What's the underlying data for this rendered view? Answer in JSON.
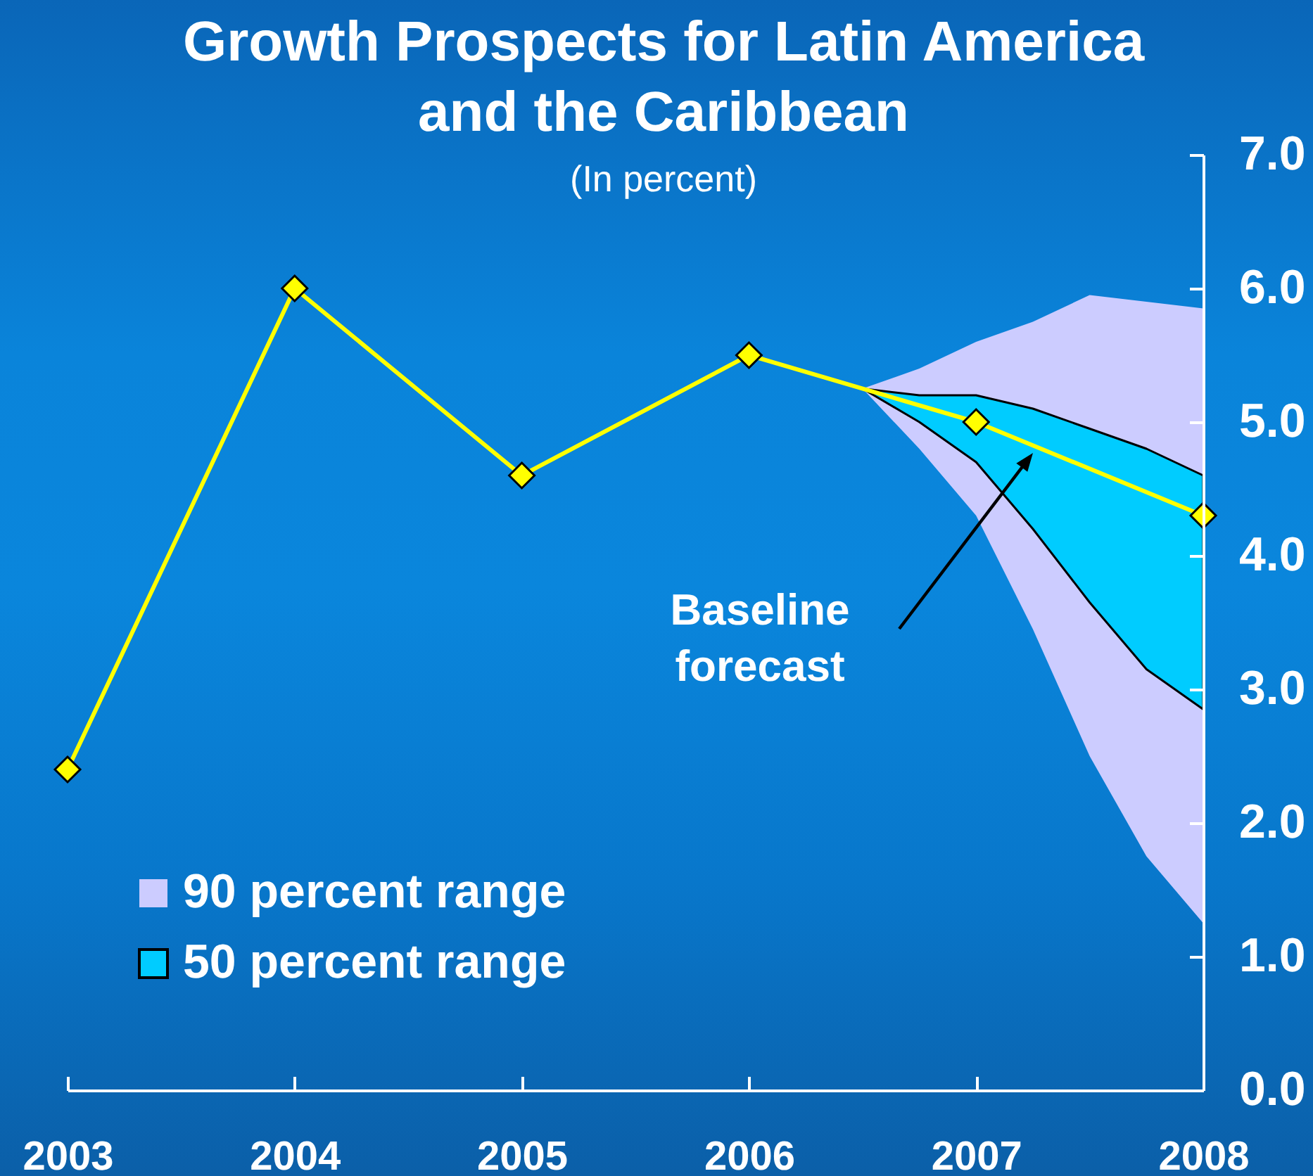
{
  "chart_data": {
    "type": "line",
    "title": "Growth Prospects for Latin America and the Caribbean",
    "subtitle": "(In percent)",
    "x": [
      2003,
      2004,
      2005,
      2006,
      2007,
      2008
    ],
    "xlim": [
      2003,
      2008
    ],
    "xticks": [
      2003,
      2004,
      2005,
      2006,
      2007,
      2008
    ],
    "ylim": [
      0,
      7
    ],
    "yticks": [
      {
        "value": 0,
        "label": "0.0"
      },
      {
        "value": 1,
        "label": "1.0"
      },
      {
        "value": 2,
        "label": "2.0"
      },
      {
        "value": 3,
        "label": "3.0"
      },
      {
        "value": 4,
        "label": "4.0"
      },
      {
        "value": 5,
        "label": "5.0"
      },
      {
        "value": 6,
        "label": "6.0"
      },
      {
        "value": 7,
        "label": "7.0"
      }
    ],
    "series": [
      {
        "type": "line",
        "name": "90 percent range",
        "color": "#ccccff",
        "x": [
          2006.5,
          2006.75,
          2007,
          2007.25,
          2007.5,
          2007.75,
          2008
        ],
        "values": [
          null,
          null,
          null,
          null,
          null,
          null,
          null
        ],
        "lower": [
          5.25,
          4.8,
          4.3,
          3.45,
          2.5,
          1.75,
          1.25
        ],
        "upper": [
          5.25,
          5.4,
          5.6,
          5.75,
          5.95,
          5.9,
          5.85
        ]
      },
      {
        "type": "line",
        "name": "50 percent range",
        "color": "#00ccff",
        "x": [
          2006.5,
          2006.75,
          2007,
          2007.25,
          2007.5,
          2007.75,
          2008
        ],
        "values": [
          null,
          null,
          null,
          null,
          null,
          null,
          null
        ],
        "lower": [
          5.25,
          5.0,
          4.7,
          4.2,
          3.65,
          3.15,
          2.85
        ],
        "upper": [
          5.25,
          5.2,
          5.2,
          5.1,
          4.95,
          4.8,
          4.6
        ]
      },
      {
        "color": "#ffff00",
        "marker": "diamond",
        "values": [
          2.4,
          6.0,
          4.6,
          5.5,
          5.0,
          4.3
        ]
      }
    ],
    "annotations": [
      "Baseline forecast"
    ],
    "legend": "bottom left"
  }
}
